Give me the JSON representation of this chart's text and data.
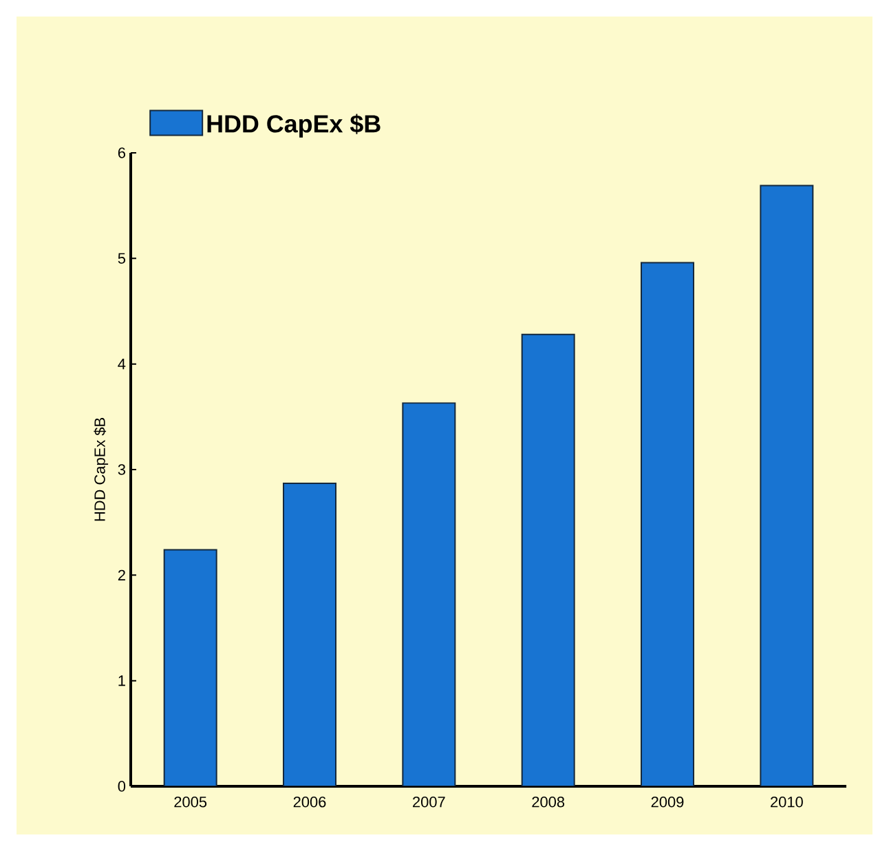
{
  "chart_data": {
    "type": "bar",
    "ylabel": "HDD CapEx $B",
    "categories": [
      "2005",
      "2006",
      "2007",
      "2008",
      "2009",
      "2010"
    ],
    "series": [
      {
        "name": "HDD CapEx $B",
        "color": "#1874d2",
        "values": [
          2.24,
          2.87,
          3.63,
          4.28,
          4.96,
          5.69
        ]
      }
    ],
    "ylim": [
      0,
      6
    ],
    "yticks": [
      0,
      1,
      2,
      3,
      4,
      5,
      6
    ],
    "legend": "top left"
  }
}
